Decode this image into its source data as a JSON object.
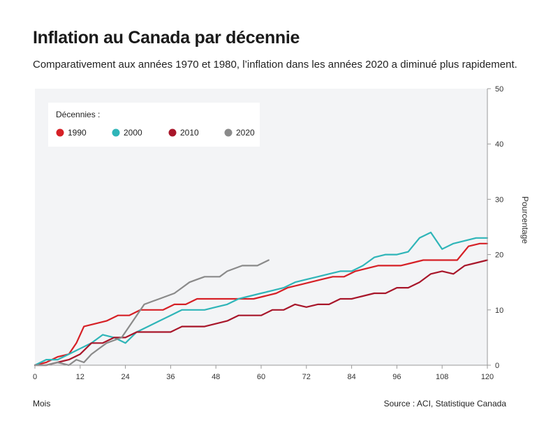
{
  "header": {
    "title": "Inflation au Canada par décennie",
    "subtitle": "Comparativement aux années 1970 et 1980, l’inflation dans les années 2020 a diminué plus rapidement."
  },
  "footer": {
    "xlabel": "Mois",
    "source": "Source : ACI, Statistique Canada"
  },
  "legend": {
    "title": "Décennies :"
  },
  "colors": {
    "background": "#f3f4f6",
    "axis": "#999999"
  },
  "chart_data": {
    "type": "line",
    "title": "Inflation au Canada par décennie",
    "xlabel": "Mois",
    "ylabel": "Pourcentage",
    "xlim": [
      0,
      120
    ],
    "ylim": [
      0,
      50
    ],
    "xticks": [
      0,
      12,
      24,
      36,
      48,
      60,
      72,
      84,
      96,
      108,
      120
    ],
    "yticks": [
      0,
      10,
      20,
      30,
      40,
      50
    ],
    "y_axis_position": "right",
    "legend_position": "top-left",
    "grid": false,
    "series": [
      {
        "name": "1990",
        "color": "#d62026",
        "x": [
          0,
          3,
          6,
          9,
          11,
          13,
          16,
          19,
          22,
          25,
          28,
          31,
          34,
          37,
          40,
          43,
          46,
          49,
          52,
          55,
          58,
          61,
          64,
          67,
          70,
          73,
          76,
          79,
          82,
          85,
          88,
          91,
          94,
          97,
          100,
          103,
          106,
          109,
          112,
          115,
          118,
          120
        ],
        "y": [
          0,
          0.5,
          1.5,
          2,
          4,
          7,
          7.5,
          8,
          9,
          9,
          10,
          10,
          10,
          11,
          11,
          12,
          12,
          12,
          12,
          12,
          12,
          12.5,
          13,
          14,
          14.5,
          15,
          15.5,
          16,
          16,
          17,
          17.5,
          18,
          18,
          18,
          18.5,
          19,
          19,
          19,
          19,
          21.5,
          22,
          22
        ]
      },
      {
        "name": "2000",
        "color": "#2fb5b8",
        "x": [
          0,
          3,
          6,
          9,
          12,
          15,
          18,
          21,
          24,
          27,
          30,
          33,
          36,
          39,
          42,
          45,
          48,
          51,
          54,
          57,
          60,
          63,
          66,
          69,
          72,
          75,
          78,
          81,
          84,
          87,
          90,
          93,
          96,
          99,
          102,
          105,
          108,
          111,
          114,
          117,
          120
        ],
        "y": [
          0,
          1,
          1,
          2,
          3,
          4,
          5.5,
          5,
          4,
          6,
          7,
          8,
          9,
          10,
          10,
          10,
          10.5,
          11,
          12,
          12.5,
          13,
          13.5,
          14,
          15,
          15.5,
          16,
          16.5,
          17,
          17,
          18,
          19.5,
          20,
          20,
          20.5,
          23,
          24,
          21,
          22,
          22.5,
          23,
          23
        ]
      },
      {
        "name": "2010",
        "color": "#a8162a",
        "x": [
          0,
          3,
          6,
          9,
          12,
          15,
          18,
          21,
          24,
          27,
          30,
          33,
          36,
          39,
          42,
          45,
          48,
          51,
          54,
          57,
          60,
          63,
          66,
          69,
          72,
          75,
          78,
          81,
          84,
          87,
          90,
          93,
          96,
          99,
          102,
          105,
          108,
          111,
          114,
          117,
          120
        ],
        "y": [
          0,
          0,
          0.5,
          1,
          2,
          4,
          4,
          5,
          5,
          6,
          6,
          6,
          6,
          7,
          7,
          7,
          7.5,
          8,
          9,
          9,
          9,
          10,
          10,
          11,
          10.5,
          11,
          11,
          12,
          12,
          12.5,
          13,
          13,
          14,
          14,
          15,
          16.5,
          17,
          16.5,
          18,
          18.5,
          19
        ]
      },
      {
        "name": "2020",
        "color": "#8a8a8a",
        "x": [
          0,
          3,
          6,
          9,
          11,
          13,
          15,
          17,
          19,
          21,
          23,
          25,
          27,
          29,
          31,
          33,
          35,
          37,
          39,
          41,
          43,
          45,
          47,
          49,
          51,
          53,
          55,
          57,
          59,
          62
        ],
        "y": [
          0,
          0,
          0.5,
          0,
          1,
          0.5,
          2,
          3,
          4,
          4.5,
          5,
          7,
          9,
          11,
          11.5,
          12,
          12.5,
          13,
          14,
          15,
          15.5,
          16,
          16,
          16,
          17,
          17.5,
          18,
          18,
          18,
          19
        ]
      }
    ]
  }
}
